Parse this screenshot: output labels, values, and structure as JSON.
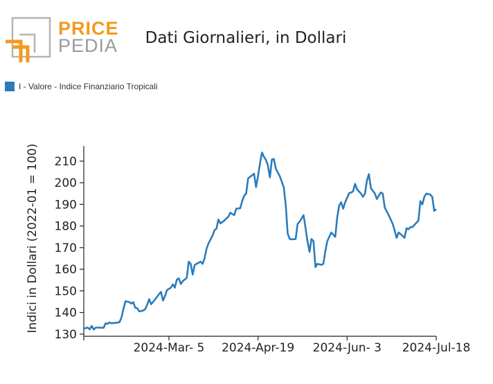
{
  "logo": {
    "word1": "PRICE",
    "word2": "PEDIA"
  },
  "chart_data": {
    "type": "line",
    "title": "Dati Giornalieri, in Dollari",
    "ylabel": "Indici in Dollari (2022-01 = 100)",
    "xlabel": "",
    "ylim": [
      129,
      217
    ],
    "yticks": [
      130,
      140,
      150,
      160,
      170,
      180,
      190,
      200,
      210
    ],
    "xlim": [
      "2024-01-22",
      "2024-07-18"
    ],
    "xticks": [
      {
        "date": "2024-03-05",
        "label": "2024-Mar- 5"
      },
      {
        "date": "2024-04-19",
        "label": "2024-Apr-19"
      },
      {
        "date": "2024-06-03",
        "label": "2024-Jun- 3"
      },
      {
        "date": "2024-07-18",
        "label": "2024-Jul-18"
      }
    ],
    "legend_position": "top-left",
    "grid": false,
    "series": [
      {
        "name": "I - Valore - Indice Finanziario Tropicali",
        "color": "#2b7bba",
        "points": [
          [
            "2024-01-22",
            132.5
          ],
          [
            "2024-01-23",
            132.8
          ],
          [
            "2024-01-24",
            133.0
          ],
          [
            "2024-01-25",
            132.2
          ],
          [
            "2024-01-26",
            133.8
          ],
          [
            "2024-01-27",
            132.1
          ],
          [
            "2024-01-28",
            133.0
          ],
          [
            "2024-01-30",
            133.0
          ],
          [
            "2024-02-01",
            132.9
          ],
          [
            "2024-02-02",
            135.0
          ],
          [
            "2024-02-03",
            134.8
          ],
          [
            "2024-02-04",
            135.4
          ],
          [
            "2024-02-05",
            135.0
          ],
          [
            "2024-02-07",
            135.2
          ],
          [
            "2024-02-09",
            135.5
          ],
          [
            "2024-02-10",
            137.5
          ],
          [
            "2024-02-11",
            141.5
          ],
          [
            "2024-02-12",
            145.2
          ],
          [
            "2024-02-14",
            144.8
          ],
          [
            "2024-02-15",
            144.1
          ],
          [
            "2024-02-16",
            144.8
          ],
          [
            "2024-02-17",
            142.2
          ],
          [
            "2024-02-18",
            142.0
          ],
          [
            "2024-02-19",
            140.5
          ],
          [
            "2024-02-21",
            140.9
          ],
          [
            "2024-02-22",
            141.5
          ],
          [
            "2024-02-23",
            143.5
          ],
          [
            "2024-02-24",
            146.2
          ],
          [
            "2024-02-25",
            143.8
          ],
          [
            "2024-02-27",
            146.0
          ],
          [
            "2024-02-29",
            148.5
          ],
          [
            "2024-03-01",
            149.5
          ],
          [
            "2024-03-02",
            145.5
          ],
          [
            "2024-03-03",
            147.5
          ],
          [
            "2024-03-04",
            150.3
          ],
          [
            "2024-03-06",
            151.5
          ],
          [
            "2024-03-07",
            153.0
          ],
          [
            "2024-03-08",
            151.5
          ],
          [
            "2024-03-09",
            155.2
          ],
          [
            "2024-03-10",
            155.8
          ],
          [
            "2024-03-11",
            153.2
          ],
          [
            "2024-03-12",
            154.5
          ],
          [
            "2024-03-14",
            156.0
          ],
          [
            "2024-03-15",
            163.5
          ],
          [
            "2024-03-16",
            162.5
          ],
          [
            "2024-03-17",
            157.5
          ],
          [
            "2024-03-18",
            162.0
          ],
          [
            "2024-03-19",
            162.5
          ],
          [
            "2024-03-21",
            163.5
          ],
          [
            "2024-03-22",
            162.5
          ],
          [
            "2024-03-23",
            165.0
          ],
          [
            "2024-03-24",
            169.5
          ],
          [
            "2024-03-25",
            172.0
          ],
          [
            "2024-03-27",
            175.5
          ],
          [
            "2024-03-28",
            178.0
          ],
          [
            "2024-03-29",
            178.8
          ],
          [
            "2024-03-30",
            183.0
          ],
          [
            "2024-03-31",
            181.2
          ],
          [
            "2024-04-02",
            182.5
          ],
          [
            "2024-04-03",
            183.5
          ],
          [
            "2024-04-04",
            184.2
          ],
          [
            "2024-04-05",
            186.2
          ],
          [
            "2024-04-06",
            185.5
          ],
          [
            "2024-04-07",
            185.0
          ],
          [
            "2024-04-08",
            188.0
          ],
          [
            "2024-04-10",
            188.2
          ],
          [
            "2024-04-11",
            191.5
          ],
          [
            "2024-04-12",
            194.0
          ],
          [
            "2024-04-13",
            195.0
          ],
          [
            "2024-04-14",
            202.0
          ],
          [
            "2024-04-16",
            203.5
          ],
          [
            "2024-04-17",
            204.2
          ],
          [
            "2024-04-18",
            198.0
          ],
          [
            "2024-04-19",
            203.0
          ],
          [
            "2024-04-20",
            209.0
          ],
          [
            "2024-04-21",
            214.0
          ],
          [
            "2024-04-22",
            212.0
          ],
          [
            "2024-04-23",
            210.5
          ],
          [
            "2024-04-24",
            208.0
          ],
          [
            "2024-04-25",
            202.5
          ],
          [
            "2024-04-26",
            210.8
          ],
          [
            "2024-04-27",
            211.0
          ],
          [
            "2024-04-28",
            206.5
          ],
          [
            "2024-04-30",
            203.0
          ],
          [
            "2024-05-02",
            198.0
          ],
          [
            "2024-05-03",
            189.5
          ],
          [
            "2024-05-04",
            176.5
          ],
          [
            "2024-05-05",
            174.0
          ],
          [
            "2024-05-06",
            173.8
          ],
          [
            "2024-05-08",
            174.0
          ],
          [
            "2024-05-09",
            181.0
          ],
          [
            "2024-05-10",
            182.0
          ],
          [
            "2024-05-12",
            185.0
          ],
          [
            "2024-05-13",
            179.0
          ],
          [
            "2024-05-14",
            173.0
          ],
          [
            "2024-05-15",
            168.0
          ],
          [
            "2024-05-16",
            174.0
          ],
          [
            "2024-05-17",
            173.0
          ],
          [
            "2024-05-18",
            161.0
          ],
          [
            "2024-05-19",
            162.5
          ],
          [
            "2024-05-21",
            162.0
          ],
          [
            "2024-05-22",
            162.5
          ],
          [
            "2024-05-23",
            168.5
          ],
          [
            "2024-05-24",
            173.0
          ],
          [
            "2024-05-26",
            177.0
          ],
          [
            "2024-05-28",
            175.0
          ],
          [
            "2024-05-29",
            184.0
          ],
          [
            "2024-05-30",
            189.5
          ],
          [
            "2024-05-31",
            191.0
          ],
          [
            "2024-06-01",
            188.0
          ],
          [
            "2024-06-02",
            191.0
          ],
          [
            "2024-06-04",
            195.2
          ],
          [
            "2024-06-05",
            195.5
          ],
          [
            "2024-06-06",
            196.0
          ],
          [
            "2024-06-07",
            199.5
          ],
          [
            "2024-06-08",
            197.0
          ],
          [
            "2024-06-10",
            195.0
          ],
          [
            "2024-06-11",
            193.5
          ],
          [
            "2024-06-12",
            195.0
          ],
          [
            "2024-06-13",
            201.0
          ],
          [
            "2024-06-14",
            204.0
          ],
          [
            "2024-06-15",
            197.5
          ],
          [
            "2024-06-17",
            195.0
          ],
          [
            "2024-06-18",
            192.5
          ],
          [
            "2024-06-19",
            194.0
          ],
          [
            "2024-06-20",
            195.5
          ],
          [
            "2024-06-21",
            195.0
          ],
          [
            "2024-06-22",
            188.5
          ],
          [
            "2024-06-24",
            185.0
          ],
          [
            "2024-06-26",
            181.0
          ],
          [
            "2024-06-27",
            178.0
          ],
          [
            "2024-06-28",
            174.5
          ],
          [
            "2024-06-29",
            177.0
          ],
          [
            "2024-07-01",
            175.5
          ],
          [
            "2024-07-02",
            174.5
          ],
          [
            "2024-07-03",
            179.0
          ],
          [
            "2024-07-04",
            178.5
          ],
          [
            "2024-07-05",
            179.5
          ],
          [
            "2024-07-06",
            179.5
          ],
          [
            "2024-07-08",
            181.5
          ],
          [
            "2024-07-09",
            182.5
          ],
          [
            "2024-07-10",
            191.5
          ],
          [
            "2024-07-11",
            190.0
          ],
          [
            "2024-07-12",
            193.5
          ],
          [
            "2024-07-13",
            195.0
          ],
          [
            "2024-07-15",
            194.5
          ],
          [
            "2024-07-16",
            193.5
          ],
          [
            "2024-07-17",
            187.0
          ],
          [
            "2024-07-18",
            187.8
          ]
        ]
      }
    ]
  }
}
